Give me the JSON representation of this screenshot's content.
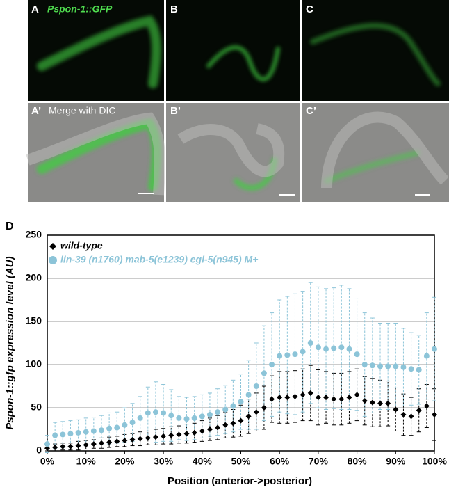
{
  "panels": [
    {
      "label": "A",
      "caption": "Pspon-1::GFP"
    },
    {
      "label": "B"
    },
    {
      "label": "C"
    },
    {
      "label": "A’",
      "caption": "Merge with DIC"
    },
    {
      "label": "B’"
    },
    {
      "label": "C’"
    }
  ],
  "chart_data": {
    "type": "line",
    "panel_label": "D",
    "xlabel": "Position (anterior->posterior)",
    "ylabel": "Pspon-1::gfp expression level (AU)",
    "x": [
      0,
      2,
      4,
      6,
      8,
      10,
      12,
      14,
      16,
      18,
      20,
      22,
      24,
      26,
      28,
      30,
      32,
      34,
      36,
      38,
      40,
      42,
      44,
      46,
      48,
      50,
      52,
      54,
      56,
      58,
      60,
      62,
      64,
      66,
      68,
      70,
      72,
      74,
      76,
      78,
      80,
      82,
      84,
      86,
      88,
      90,
      92,
      94,
      96,
      98,
      100
    ],
    "xlim": [
      0,
      100
    ],
    "xticks": [
      {
        "value": 0,
        "label": "0%"
      },
      {
        "value": 10,
        "label": "10%"
      },
      {
        "value": 20,
        "label": "20%"
      },
      {
        "value": 30,
        "label": "30%"
      },
      {
        "value": 40,
        "label": "40%"
      },
      {
        "value": 50,
        "label": "50%"
      },
      {
        "value": 60,
        "label": "60%"
      },
      {
        "value": 70,
        "label": "70%"
      },
      {
        "value": 80,
        "label": "80%"
      },
      {
        "value": 90,
        "label": "90%"
      },
      {
        "value": 100,
        "label": "100%"
      }
    ],
    "ylim": [
      0,
      250
    ],
    "yticks": [
      0,
      50,
      100,
      150,
      200,
      250
    ],
    "grid": true,
    "legend": "upper left",
    "series": [
      {
        "name": "wild-type",
        "color": "#000000",
        "marker": "diamond",
        "values": [
          3,
          4,
          5,
          5,
          6,
          7,
          8,
          9,
          10,
          11,
          12,
          13,
          14,
          15,
          16,
          17,
          18,
          19,
          20,
          21,
          23,
          25,
          27,
          30,
          32,
          35,
          40,
          45,
          50,
          60,
          62,
          62,
          63,
          65,
          67,
          62,
          62,
          60,
          60,
          62,
          65,
          58,
          56,
          55,
          55,
          48,
          42,
          40,
          47,
          52,
          42
        ],
        "errors": [
          3,
          4,
          4,
          4,
          5,
          5,
          5,
          6,
          6,
          6,
          7,
          7,
          8,
          8,
          9,
          9,
          10,
          10,
          11,
          11,
          12,
          13,
          14,
          15,
          16,
          18,
          20,
          22,
          25,
          27,
          30,
          30,
          30,
          30,
          32,
          32,
          30,
          30,
          30,
          30,
          30,
          28,
          28,
          27,
          26,
          25,
          24,
          22,
          25,
          25,
          30
        ]
      },
      {
        "name": "lin-39 (n1760) mab-5(e1239) egl-5(n945) M+",
        "color": "#8cc4d8",
        "marker": "circle",
        "values": [
          8,
          18,
          19,
          20,
          21,
          22,
          23,
          24,
          26,
          27,
          30,
          33,
          38,
          44,
          45,
          44,
          41,
          38,
          37,
          38,
          40,
          42,
          45,
          48,
          52,
          57,
          65,
          75,
          90,
          100,
          110,
          111,
          112,
          115,
          125,
          120,
          118,
          119,
          120,
          118,
          112,
          100,
          99,
          98,
          98,
          98,
          97,
          95,
          94,
          110,
          118
        ],
        "errors": [
          10,
          15,
          15,
          15,
          15,
          16,
          16,
          17,
          18,
          18,
          20,
          22,
          25,
          30,
          35,
          33,
          30,
          25,
          25,
          25,
          25,
          25,
          27,
          28,
          30,
          32,
          40,
          50,
          55,
          60,
          65,
          68,
          70,
          70,
          70,
          70,
          70,
          70,
          72,
          70,
          65,
          60,
          55,
          50,
          50,
          50,
          45,
          42,
          40,
          50,
          60
        ]
      }
    ]
  }
}
